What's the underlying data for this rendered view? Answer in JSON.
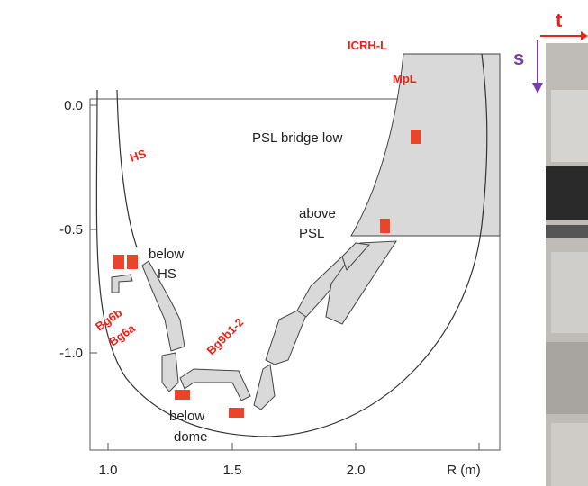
{
  "axis": {
    "y_ticks": [
      "0.0",
      "-0.5",
      "-1.0"
    ],
    "x_ticks": [
      "1.0",
      "1.5",
      "2.0"
    ],
    "x_label": "R (m)"
  },
  "labels": {
    "psl_bridge_low": "PSL bridge low",
    "above_psl": [
      "above",
      "PSL"
    ],
    "below_hs": [
      "below",
      "HS"
    ],
    "below_dome": [
      "below",
      "dome"
    ]
  },
  "annotations": {
    "icrh": "ICRH-L",
    "mpl": "MpL",
    "hs": "HS",
    "bg6b": "Bg6b",
    "bg6a": "Bg6a",
    "bg9b": "Bg9b1-2"
  },
  "photo": {
    "s": "s",
    "t": "t"
  }
}
